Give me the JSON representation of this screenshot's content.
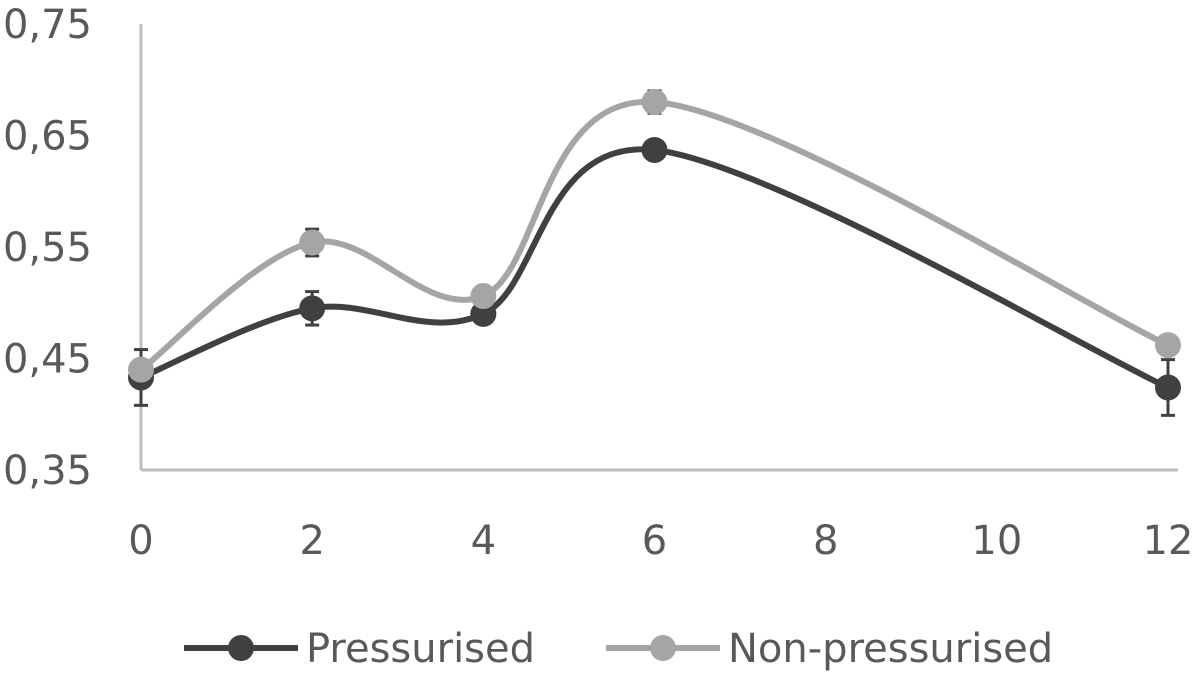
{
  "chart_data": {
    "type": "line",
    "title": "",
    "xlabel": "",
    "ylabel": "",
    "x": [
      0,
      2,
      4,
      6,
      12
    ],
    "xticks": [
      "0",
      "2",
      "4",
      "6",
      "8",
      "10",
      "12"
    ],
    "xlim": [
      0,
      12
    ],
    "yticks": [
      "0,35",
      "0,45",
      "0,55",
      "0,65",
      "0,75"
    ],
    "ylim": [
      0.35,
      0.75
    ],
    "smooth": true,
    "grid": false,
    "legend_position": "bottom",
    "series": [
      {
        "name": "Pressurised",
        "color": "#404040",
        "values": [
          0.433,
          0.495,
          0.49,
          0.637,
          0.424
        ],
        "error": [
          0.025,
          0.015,
          0.0,
          0.0,
          0.025
        ]
      },
      {
        "name": "Non-pressurised",
        "color": "#a5a5a5",
        "values": [
          0.44,
          0.554,
          0.506,
          0.68,
          0.462
        ],
        "error": [
          0.0,
          0.012,
          0.0,
          0.01,
          0.0
        ]
      }
    ]
  }
}
